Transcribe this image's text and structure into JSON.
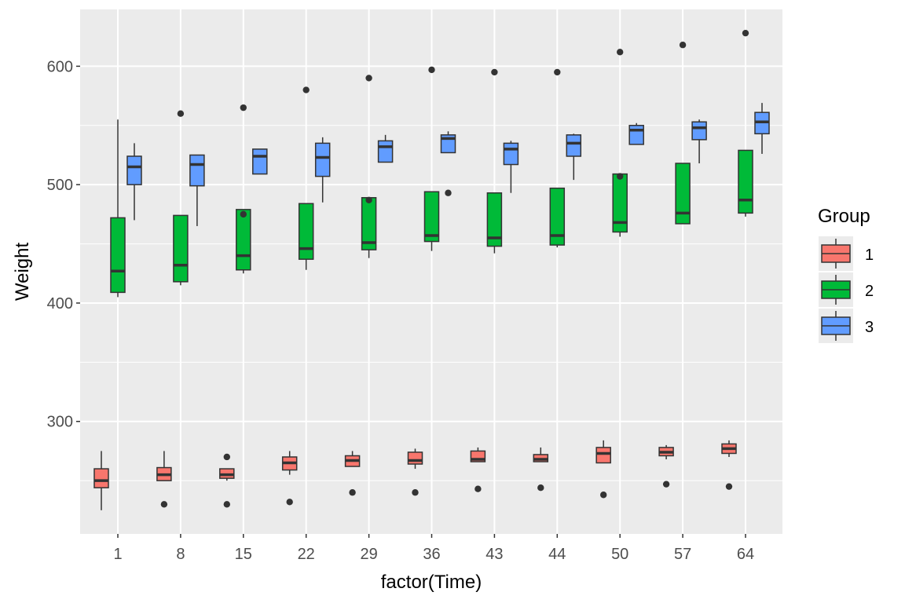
{
  "chart_data": {
    "type": "boxplot",
    "xlabel": "factor(Time)",
    "ylabel": "Weight",
    "categories": [
      "1",
      "8",
      "15",
      "22",
      "29",
      "36",
      "43",
      "44",
      "50",
      "57",
      "64"
    ],
    "ylim": [
      205,
      648
    ],
    "yticks": [
      300,
      400,
      500,
      600
    ],
    "grid": true,
    "panel_background": "#EBEBEB",
    "grid_color": "#FFFFFF",
    "legend": {
      "title": "Group",
      "position": "right"
    },
    "series": [
      {
        "name": "1",
        "color": "#F8766D",
        "boxes": [
          {
            "lower_whisker": 225,
            "q1": 244,
            "median": 250,
            "q3": 260,
            "upper_whisker": 275,
            "outliers": []
          },
          {
            "lower_whisker": 250,
            "q1": 250,
            "median": 255,
            "q3": 261,
            "upper_whisker": 275,
            "outliers": [
              230
            ]
          },
          {
            "lower_whisker": 250,
            "q1": 252,
            "median": 255,
            "q3": 260,
            "upper_whisker": 260,
            "outliers": [
              270,
              230
            ]
          },
          {
            "lower_whisker": 255,
            "q1": 259,
            "median": 265,
            "q3": 270,
            "upper_whisker": 275,
            "outliers": [
              232
            ]
          },
          {
            "lower_whisker": 262,
            "q1": 262,
            "median": 267,
            "q3": 271,
            "upper_whisker": 275,
            "outliers": [
              240
            ]
          },
          {
            "lower_whisker": 260,
            "q1": 264,
            "median": 267,
            "q3": 274,
            "upper_whisker": 277,
            "outliers": [
              240
            ]
          },
          {
            "lower_whisker": 266,
            "q1": 266,
            "median": 268,
            "q3": 275,
            "upper_whisker": 278,
            "outliers": [
              243
            ]
          },
          {
            "lower_whisker": 266,
            "q1": 266,
            "median": 268,
            "q3": 272,
            "upper_whisker": 278,
            "outliers": [
              244
            ]
          },
          {
            "lower_whisker": 265,
            "q1": 265,
            "median": 273,
            "q3": 278,
            "upper_whisker": 284,
            "outliers": [
              238
            ]
          },
          {
            "lower_whisker": 268,
            "q1": 271,
            "median": 274,
            "q3": 278,
            "upper_whisker": 280,
            "outliers": [
              247
            ]
          },
          {
            "lower_whisker": 270,
            "q1": 273,
            "median": 277,
            "q3": 281,
            "upper_whisker": 284,
            "outliers": [
              245
            ]
          }
        ]
      },
      {
        "name": "2",
        "color": "#00BA38",
        "boxes": [
          {
            "lower_whisker": 405,
            "q1": 409,
            "median": 427,
            "q3": 472,
            "upper_whisker": 555,
            "outliers": []
          },
          {
            "lower_whisker": 415,
            "q1": 418,
            "median": 432,
            "q3": 474,
            "upper_whisker": 474,
            "outliers": [
              560
            ]
          },
          {
            "lower_whisker": 425,
            "q1": 428,
            "median": 440,
            "q3": 479,
            "upper_whisker": 479,
            "outliers": [
              565,
              475
            ]
          },
          {
            "lower_whisker": 428,
            "q1": 437,
            "median": 446,
            "q3": 484,
            "upper_whisker": 484,
            "outliers": [
              580
            ]
          },
          {
            "lower_whisker": 438,
            "q1": 445,
            "median": 451,
            "q3": 489,
            "upper_whisker": 489,
            "outliers": [
              590,
              487
            ]
          },
          {
            "lower_whisker": 444,
            "q1": 452,
            "median": 457,
            "q3": 494,
            "upper_whisker": 494,
            "outliers": [
              597
            ]
          },
          {
            "lower_whisker": 442,
            "q1": 448,
            "median": 455,
            "q3": 493,
            "upper_whisker": 493,
            "outliers": [
              595
            ]
          },
          {
            "lower_whisker": 447,
            "q1": 449,
            "median": 457,
            "q3": 497,
            "upper_whisker": 497,
            "outliers": [
              595
            ]
          },
          {
            "lower_whisker": 456,
            "q1": 460,
            "median": 468,
            "q3": 509,
            "upper_whisker": 509,
            "outliers": [
              612,
              507
            ]
          },
          {
            "lower_whisker": 467,
            "q1": 467,
            "median": 476,
            "q3": 518,
            "upper_whisker": 518,
            "outliers": [
              618
            ]
          },
          {
            "lower_whisker": 473,
            "q1": 476,
            "median": 487,
            "q3": 529,
            "upper_whisker": 529,
            "outliers": [
              628
            ]
          }
        ]
      },
      {
        "name": "3",
        "color": "#619CFF",
        "boxes": [
          {
            "lower_whisker": 470,
            "q1": 500,
            "median": 515,
            "q3": 524,
            "upper_whisker": 535,
            "outliers": []
          },
          {
            "lower_whisker": 465,
            "q1": 499,
            "median": 517,
            "q3": 525,
            "upper_whisker": 525,
            "outliers": []
          },
          {
            "lower_whisker": 509,
            "q1": 509,
            "median": 524,
            "q3": 530,
            "upper_whisker": 530,
            "outliers": []
          },
          {
            "lower_whisker": 485,
            "q1": 507,
            "median": 523,
            "q3": 535,
            "upper_whisker": 540,
            "outliers": []
          },
          {
            "lower_whisker": 519,
            "q1": 519,
            "median": 532,
            "q3": 537,
            "upper_whisker": 542,
            "outliers": []
          },
          {
            "lower_whisker": 527,
            "q1": 527,
            "median": 539,
            "q3": 542,
            "upper_whisker": 545,
            "outliers": [
              493
            ]
          },
          {
            "lower_whisker": 493,
            "q1": 517,
            "median": 530,
            "q3": 535,
            "upper_whisker": 537,
            "outliers": []
          },
          {
            "lower_whisker": 504,
            "q1": 524,
            "median": 535,
            "q3": 542,
            "upper_whisker": 543,
            "outliers": []
          },
          {
            "lower_whisker": 534,
            "q1": 534,
            "median": 546,
            "q3": 550,
            "upper_whisker": 552,
            "outliers": []
          },
          {
            "lower_whisker": 518,
            "q1": 538,
            "median": 548,
            "q3": 553,
            "upper_whisker": 555,
            "outliers": []
          },
          {
            "lower_whisker": 526,
            "q1": 543,
            "median": 553,
            "q3": 561,
            "upper_whisker": 569,
            "outliers": []
          }
        ]
      }
    ]
  }
}
